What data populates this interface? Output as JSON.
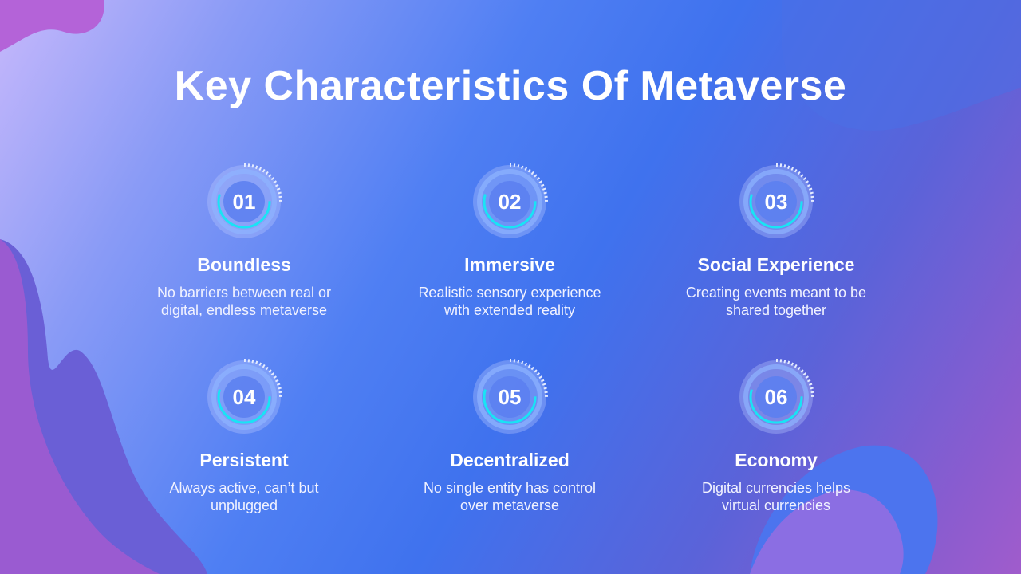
{
  "slide": {
    "title": "Key Characteristics Of Metaverse"
  },
  "items": [
    {
      "number": "01",
      "title": "Boundless",
      "desc_line1": "No barriers between real or",
      "desc_line2": "digital, endless metaverse"
    },
    {
      "number": "02",
      "title": "Immersive",
      "desc_line1": "Realistic sensory experience",
      "desc_line2": "with extended reality"
    },
    {
      "number": "03",
      "title": "Social Experience",
      "desc_line1": "Creating events meant to be",
      "desc_line2": "shared together"
    },
    {
      "number": "04",
      "title": "Persistent",
      "desc_line1": "Always active, can’t but",
      "desc_line2": "unplugged"
    },
    {
      "number": "05",
      "title": "Decentralized",
      "desc_line1": "No single entity has control",
      "desc_line2": "over metaverse"
    },
    {
      "number": "06",
      "title": "Economy",
      "desc_line1": "Digital currencies helps",
      "desc_line2": "virtual currencies"
    }
  ],
  "colors": {
    "accent_cyan": "#19e3f5",
    "ring_light": "#b9c8ff",
    "blob_purple": "#b061d8",
    "blob_blue": "#3f72ee"
  }
}
